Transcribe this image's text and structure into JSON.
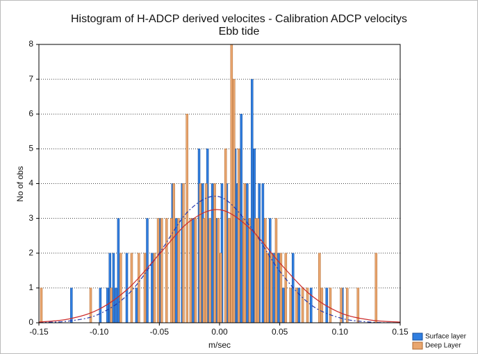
{
  "chart_data": {
    "type": "bar",
    "title": "Histogram of H-ADCP derived velocites - Calibration ADCP velocitys",
    "subtitle": "Ebb tide",
    "xlabel": "m/sec",
    "ylabel": "No of obs",
    "xlim": [
      -0.15,
      0.15
    ],
    "ylim": [
      0,
      8
    ],
    "xticks": [
      -0.15,
      {
        "value": -0.1,
        "label": "-0.10"
      },
      -0.05,
      {
        "value": 0,
        "label": "0.00"
      },
      0.05,
      {
        "value": 0.1,
        "label": "0.10"
      },
      0.15
    ],
    "yticks": [
      0,
      1,
      2,
      3,
      4,
      5,
      6,
      7,
      8
    ],
    "grid": true,
    "legend": "bottom-right",
    "series": [
      {
        "name": "Surface layer",
        "color": "#2f7ee0",
        "x": [
          -0.123,
          -0.099,
          -0.093,
          -0.091,
          -0.088,
          -0.086,
          -0.084,
          -0.077,
          -0.069,
          -0.06,
          -0.056,
          -0.05,
          -0.039,
          -0.036,
          -0.031,
          -0.022,
          -0.017,
          -0.014,
          -0.01,
          -0.006,
          -0.002,
          0.002,
          0.006,
          0.009,
          0.013,
          0.015,
          0.018,
          0.023,
          0.027,
          0.029,
          0.033,
          0.036,
          0.042,
          0.045,
          0.049,
          0.053,
          0.061,
          0.066,
          0.076,
          0.089,
          0.102
        ],
        "values": [
          1,
          1,
          1,
          2,
          2,
          1,
          3,
          2,
          1,
          3,
          2,
          3,
          4,
          3,
          4,
          3,
          5,
          4,
          5,
          4,
          3,
          4,
          4,
          3,
          5,
          4,
          6,
          4,
          7,
          5,
          4,
          4,
          3,
          2,
          2,
          1,
          2,
          1,
          1,
          1,
          1
        ]
      },
      {
        "name": "Deep Layer",
        "color": "#e9a66f",
        "x": [
          -0.148,
          -0.107,
          -0.09,
          -0.082,
          -0.073,
          -0.067,
          -0.062,
          -0.054,
          -0.051,
          -0.048,
          -0.044,
          -0.04,
          -0.038,
          -0.034,
          -0.03,
          -0.027,
          -0.024,
          -0.02,
          -0.016,
          -0.013,
          -0.011,
          -0.008,
          -0.004,
          -0.001,
          0.001,
          0.005,
          0.008,
          0.01,
          0.012,
          0.016,
          0.02,
          0.021,
          0.025,
          0.03,
          0.032,
          0.038,
          0.04,
          0.043,
          0.047,
          0.051,
          0.055,
          0.059,
          0.064,
          0.069,
          0.073,
          0.083,
          0.085,
          0.092,
          0.101,
          0.106,
          0.115,
          0.13
        ],
        "values": [
          1,
          1,
          1,
          2,
          2,
          2,
          2,
          2,
          3,
          3,
          3,
          3,
          4,
          3,
          4,
          6,
          3,
          3,
          4,
          3,
          4,
          3,
          4,
          3,
          2,
          5,
          3,
          8,
          7,
          5,
          3,
          4,
          3,
          3,
          3,
          3,
          2,
          2,
          3,
          2,
          2,
          1,
          1,
          1,
          1,
          2,
          1,
          1,
          1,
          1,
          1,
          2
        ]
      }
    ],
    "curves": [
      {
        "type": "line",
        "color": "#2233aa",
        "dash": "6 3 2 3",
        "x": [
          -0.15,
          -0.125,
          -0.1,
          -0.075,
          -0.05,
          -0.025,
          0,
          0.025,
          0.05,
          0.075,
          0.1,
          0.125,
          0.15
        ],
        "values": [
          0.01,
          0.05,
          0.25,
          0.85,
          2.0,
          3.24,
          3.62,
          2.79,
          1.48,
          0.54,
          0.14,
          0.02,
          0.0
        ]
      },
      {
        "type": "line",
        "color": "#cc2a2a",
        "dash": "none",
        "x": [
          -0.15,
          -0.125,
          -0.1,
          -0.075,
          -0.05,
          -0.025,
          0,
          0.025,
          0.05,
          0.075,
          0.1,
          0.125,
          0.15
        ],
        "values": [
          0.02,
          0.11,
          0.39,
          1.01,
          1.97,
          2.91,
          3.25,
          2.72,
          1.72,
          0.82,
          0.29,
          0.08,
          0.02
        ]
      }
    ]
  }
}
